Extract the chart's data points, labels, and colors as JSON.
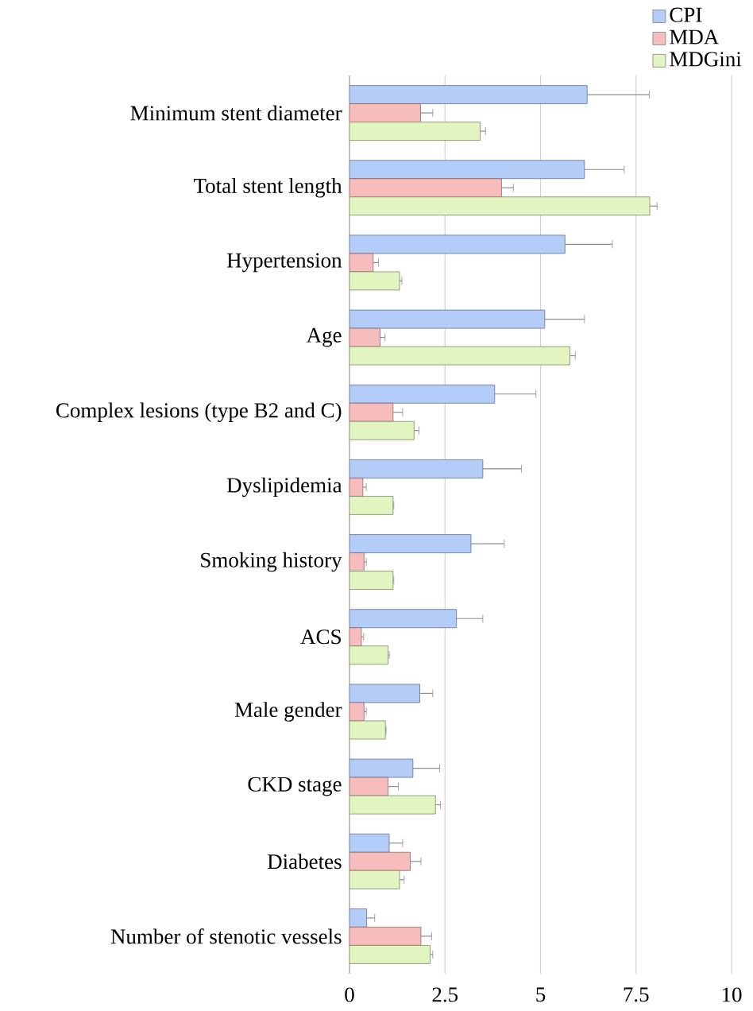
{
  "chart_data": {
    "type": "bar",
    "orientation": "horizontal",
    "categories": [
      "Minimum stent diameter",
      "Total stent length",
      "Hypertension",
      "Age",
      "Complex lesions (type B2 and C)",
      "Dyslipidemia",
      "Smoking history",
      "ACS",
      "Male gender",
      "CKD stage",
      "Diabetes",
      "Number of stenotic vessels"
    ],
    "series": [
      {
        "name": "CPI",
        "color": "#b4cdf8",
        "values": [
          6.22,
          6.15,
          5.64,
          5.11,
          3.8,
          3.49,
          3.18,
          2.8,
          1.84,
          1.66,
          1.04,
          0.45
        ],
        "errors": [
          [
            6.22,
            7.85
          ],
          [
            6.15,
            7.19
          ],
          [
            5.64,
            6.88
          ],
          [
            5.11,
            6.15
          ],
          [
            3.8,
            4.88
          ],
          [
            3.49,
            4.5
          ],
          [
            3.18,
            4.05
          ],
          [
            2.8,
            3.49
          ],
          [
            1.84,
            2.18
          ],
          [
            1.66,
            2.36
          ],
          [
            1.04,
            1.39
          ],
          [
            0.45,
            0.66
          ]
        ]
      },
      {
        "name": "MDA",
        "color": "#f7bcbc",
        "values": [
          1.86,
          3.98,
          0.62,
          0.8,
          1.14,
          0.35,
          0.38,
          0.31,
          0.38,
          1.01,
          1.59,
          1.87
        ],
        "errors": [
          [
            1.86,
            2.18
          ],
          [
            3.98,
            4.29
          ],
          [
            0.62,
            0.76
          ],
          [
            0.8,
            0.93
          ],
          [
            1.14,
            1.39
          ],
          [
            0.35,
            0.44
          ],
          [
            0.38,
            0.44
          ],
          [
            0.31,
            0.37
          ],
          [
            0.38,
            0.44
          ],
          [
            1.01,
            1.28
          ],
          [
            1.59,
            1.87
          ],
          [
            1.87,
            2.15
          ]
        ]
      },
      {
        "name": "MDGini",
        "color": "#e2f5c0",
        "values": [
          3.42,
          7.86,
          1.31,
          5.77,
          1.69,
          1.14,
          1.14,
          1.01,
          0.94,
          2.25,
          1.31,
          2.11
        ],
        "errors": [
          [
            3.42,
            3.56
          ],
          [
            7.86,
            8.05
          ],
          [
            1.31,
            1.37
          ],
          [
            5.77,
            5.91
          ],
          [
            1.69,
            1.82
          ],
          [
            1.14,
            1.16
          ],
          [
            1.14,
            1.16
          ],
          [
            1.01,
            1.04
          ],
          [
            0.94,
            0.96
          ],
          [
            2.25,
            2.38
          ],
          [
            1.31,
            1.43
          ],
          [
            2.11,
            2.18
          ]
        ]
      }
    ],
    "xlim": [
      0,
      10
    ],
    "xticks": [
      0,
      2.5,
      5,
      7.5,
      10
    ],
    "grid": "x",
    "legend": "top right"
  }
}
